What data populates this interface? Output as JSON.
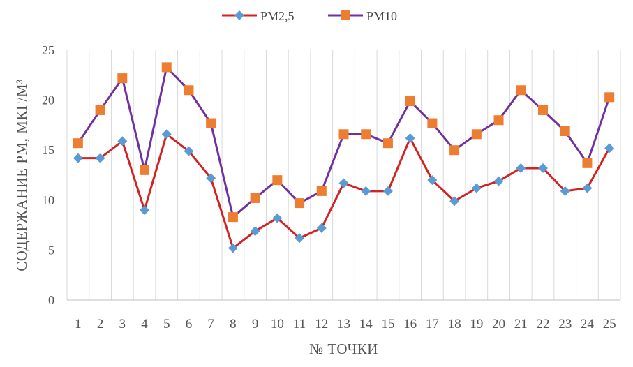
{
  "chart_data": {
    "type": "line",
    "xlabel": "№ ТОЧКИ",
    "ylabel": "СОДЕРЖАНИЕ  РМ, МКГ/М³",
    "ylim": [
      0,
      25
    ],
    "yticks": [
      "0",
      "5",
      "10",
      "15",
      "20",
      "25"
    ],
    "categories": [
      "1",
      "2",
      "3",
      "4",
      "5",
      "6",
      "7",
      "8",
      "9",
      "10",
      "11",
      "12",
      "13",
      "14",
      "15",
      "16",
      "17",
      "18",
      "19",
      "20",
      "21",
      "22",
      "23",
      "24",
      "25"
    ],
    "grid": "vertical",
    "legend_position": "top",
    "series": [
      {
        "name": "PM2,5",
        "color": "#d32222",
        "marker": "diamond",
        "marker_color": "#5b9bd5",
        "values": [
          14.2,
          14.2,
          15.9,
          9.0,
          16.6,
          14.9,
          12.2,
          5.2,
          6.9,
          8.2,
          6.2,
          7.2,
          11.7,
          10.9,
          10.9,
          16.2,
          12.0,
          9.9,
          11.2,
          11.9,
          13.2,
          13.2,
          10.9,
          11.2,
          15.2
        ]
      },
      {
        "name": "PM10",
        "color": "#7030a0",
        "marker": "square",
        "marker_color": "#ed7d31",
        "values": [
          15.7,
          19.0,
          22.2,
          13.0,
          23.3,
          21.0,
          17.7,
          8.3,
          10.2,
          12.0,
          9.7,
          10.9,
          16.6,
          16.6,
          15.7,
          19.9,
          17.7,
          15.0,
          16.6,
          18.0,
          21.0,
          19.0,
          16.9,
          13.7,
          20.3
        ]
      }
    ]
  }
}
